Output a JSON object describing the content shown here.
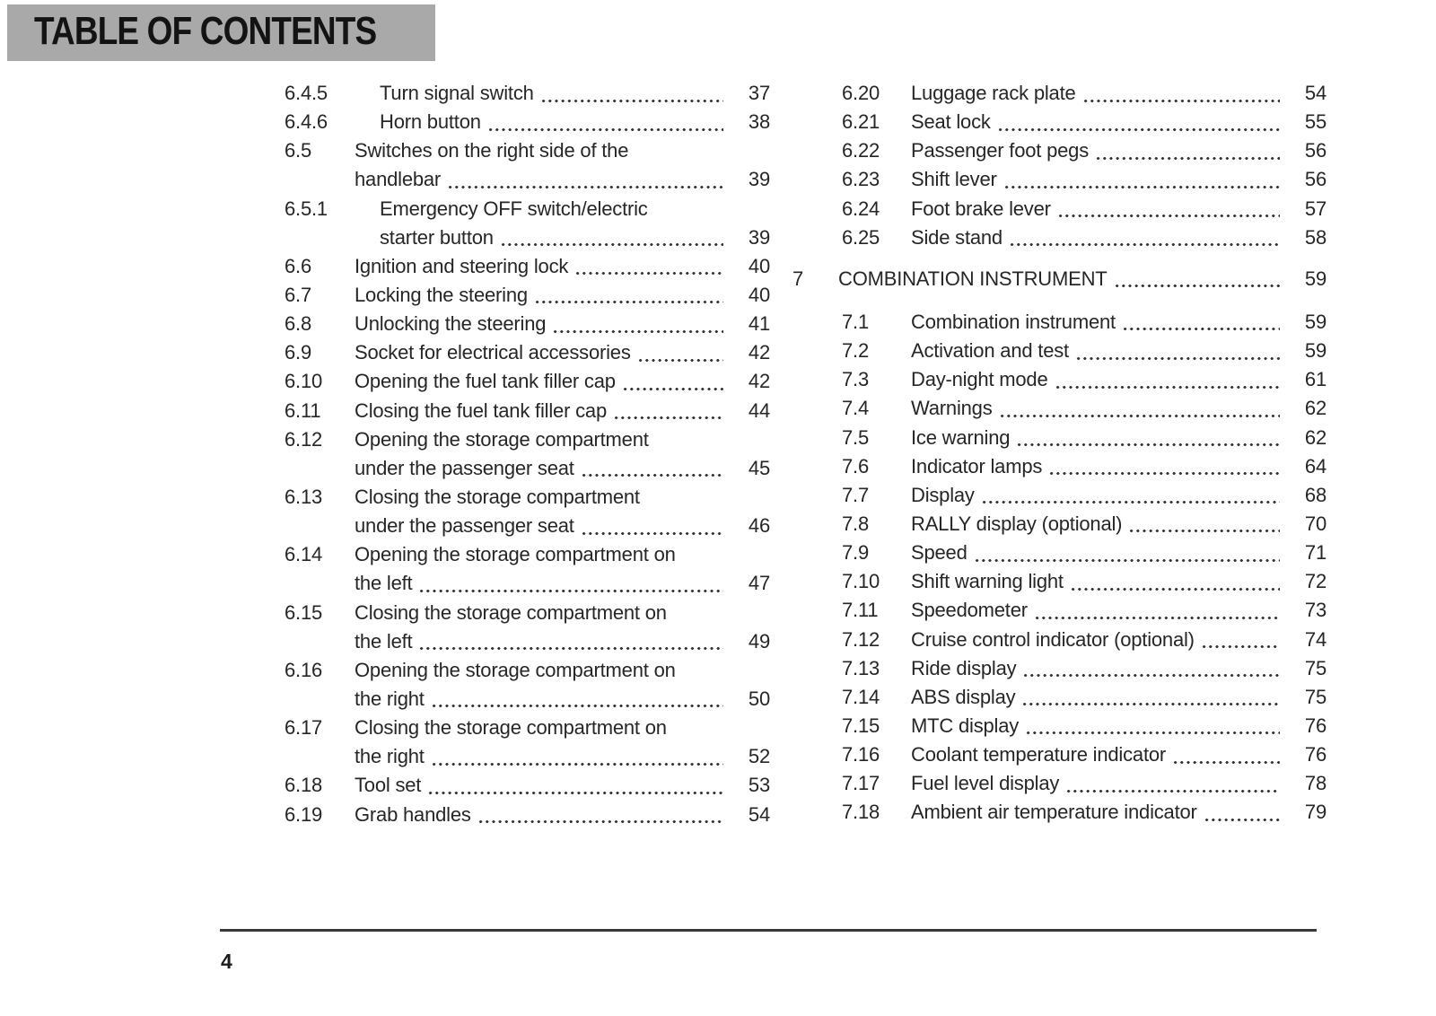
{
  "header": {
    "title": "TABLE OF CONTENTS"
  },
  "footer": {
    "page_number": "4"
  },
  "colors": {
    "header_bg": "#a9a9a9",
    "text": "#262626",
    "rule": "#3a3a3a"
  },
  "toc": {
    "left_column": [
      {
        "num": "6.4.5",
        "level": 3,
        "lines": [
          "Turn signal switch"
        ],
        "page": "37"
      },
      {
        "num": "6.4.6",
        "level": 3,
        "lines": [
          "Horn button"
        ],
        "page": "38"
      },
      {
        "num": "6.5",
        "level": 2,
        "lines": [
          "Switches on the right side of the",
          "handlebar"
        ],
        "page": "39"
      },
      {
        "num": "6.5.1",
        "level": 3,
        "lines": [
          "Emergency OFF switch/electric",
          "starter button"
        ],
        "page": "39"
      },
      {
        "num": "6.6",
        "level": 2,
        "lines": [
          "Ignition and steering lock"
        ],
        "page": "40"
      },
      {
        "num": "6.7",
        "level": 2,
        "lines": [
          "Locking the steering"
        ],
        "page": "40"
      },
      {
        "num": "6.8",
        "level": 2,
        "lines": [
          "Unlocking the steering"
        ],
        "page": "41"
      },
      {
        "num": "6.9",
        "level": 2,
        "lines": [
          "Socket for electrical accessories"
        ],
        "page": "42"
      },
      {
        "num": "6.10",
        "level": 2,
        "lines": [
          "Opening the fuel tank filler cap"
        ],
        "page": "42"
      },
      {
        "num": "6.11",
        "level": 2,
        "lines": [
          "Closing the fuel tank filler cap"
        ],
        "page": "44"
      },
      {
        "num": "6.12",
        "level": 2,
        "lines": [
          "Opening the storage compartment",
          "under the passenger seat"
        ],
        "page": "45"
      },
      {
        "num": "6.13",
        "level": 2,
        "lines": [
          "Closing the storage compartment",
          "under the passenger seat"
        ],
        "page": "46"
      },
      {
        "num": "6.14",
        "level": 2,
        "lines": [
          "Opening the storage compartment on",
          "the left"
        ],
        "page": "47"
      },
      {
        "num": "6.15",
        "level": 2,
        "lines": [
          "Closing the storage compartment on",
          "the left"
        ],
        "page": "49"
      },
      {
        "num": "6.16",
        "level": 2,
        "lines": [
          "Opening the storage compartment on",
          "the right"
        ],
        "page": "50"
      },
      {
        "num": "6.17",
        "level": 2,
        "lines": [
          "Closing the storage compartment on",
          "the right"
        ],
        "page": "52"
      },
      {
        "num": "6.18",
        "level": 2,
        "lines": [
          "Tool set"
        ],
        "page": "53"
      },
      {
        "num": "6.19",
        "level": 2,
        "lines": [
          "Grab handles"
        ],
        "page": "54"
      }
    ],
    "right_column": [
      {
        "num": "6.20",
        "level": 2,
        "lines": [
          "Luggage rack plate"
        ],
        "page": "54"
      },
      {
        "num": "6.21",
        "level": 2,
        "lines": [
          "Seat lock"
        ],
        "page": "55"
      },
      {
        "num": "6.22",
        "level": 2,
        "lines": [
          "Passenger foot pegs"
        ],
        "page": "56"
      },
      {
        "num": "6.23",
        "level": 2,
        "lines": [
          "Shift lever"
        ],
        "page": "56"
      },
      {
        "num": "6.24",
        "level": 2,
        "lines": [
          "Foot brake lever"
        ],
        "page": "57"
      },
      {
        "num": "6.25",
        "level": 2,
        "lines": [
          "Side stand"
        ],
        "page": "58"
      },
      {
        "num": "7",
        "level": 1,
        "lines": [
          "COMBINATION INSTRUMENT"
        ],
        "page": "59"
      },
      {
        "num": "7.1",
        "level": 2,
        "lines": [
          "Combination instrument"
        ],
        "page": "59"
      },
      {
        "num": "7.2",
        "level": 2,
        "lines": [
          "Activation and test"
        ],
        "page": "59"
      },
      {
        "num": "7.3",
        "level": 2,
        "lines": [
          "Day-night mode"
        ],
        "page": "61"
      },
      {
        "num": "7.4",
        "level": 2,
        "lines": [
          "Warnings"
        ],
        "page": "62"
      },
      {
        "num": "7.5",
        "level": 2,
        "lines": [
          "Ice warning"
        ],
        "page": "62"
      },
      {
        "num": "7.6",
        "level": 2,
        "lines": [
          "Indicator lamps"
        ],
        "page": "64"
      },
      {
        "num": "7.7",
        "level": 2,
        "lines": [
          "Display"
        ],
        "page": "68"
      },
      {
        "num": "7.8",
        "level": 2,
        "lines": [
          "RALLY display (optional)"
        ],
        "page": "70"
      },
      {
        "num": "7.9",
        "level": 2,
        "lines": [
          "Speed"
        ],
        "page": "71"
      },
      {
        "num": "7.10",
        "level": 2,
        "lines": [
          "Shift warning light"
        ],
        "page": "72"
      },
      {
        "num": "7.11",
        "level": 2,
        "lines": [
          "Speedometer"
        ],
        "page": "73"
      },
      {
        "num": "7.12",
        "level": 2,
        "lines": [
          "Cruise control indicator (optional)"
        ],
        "page": "74"
      },
      {
        "num": "7.13",
        "level": 2,
        "lines": [
          "Ride display"
        ],
        "page": "75"
      },
      {
        "num": "7.14",
        "level": 2,
        "lines": [
          "ABS display"
        ],
        "page": "75"
      },
      {
        "num": "7.15",
        "level": 2,
        "lines": [
          "MTC display"
        ],
        "page": "76"
      },
      {
        "num": "7.16",
        "level": 2,
        "lines": [
          "Coolant temperature indicator"
        ],
        "page": "76"
      },
      {
        "num": "7.17",
        "level": 2,
        "lines": [
          "Fuel level display"
        ],
        "page": "78"
      },
      {
        "num": "7.18",
        "level": 2,
        "lines": [
          "Ambient air temperature indicator"
        ],
        "page": "79"
      }
    ]
  }
}
